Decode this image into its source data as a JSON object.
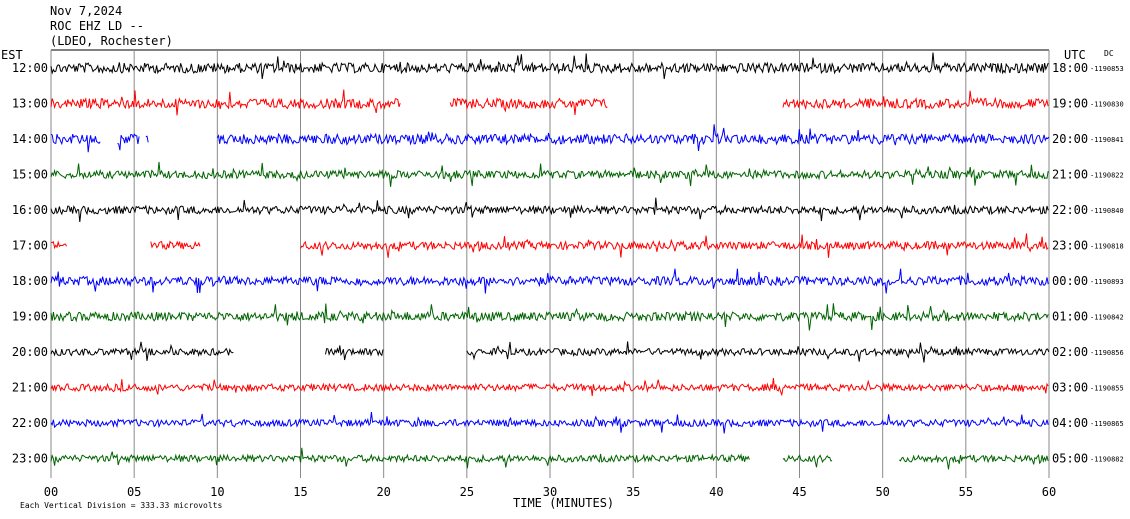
{
  "header": {
    "date": "Nov 7,2024",
    "station": "ROC EHZ LD --",
    "network": "(LDEO, Rochester)"
  },
  "left_axis_label": "EST",
  "right_axis_label": "UTC",
  "dc_label": "DC",
  "x_axis_label": "TIME (MINUTES)",
  "footer_note": "Each Vertical Division = 333.33 microvolts",
  "chart_data": {
    "type": "line",
    "title": "",
    "xlabel": "TIME (MINUTES)",
    "xlim": [
      0,
      60
    ],
    "x_ticks": [
      0,
      5,
      10,
      15,
      20,
      25,
      30,
      35,
      40,
      45,
      50,
      55,
      60
    ],
    "x_tick_labels": [
      "00",
      "05",
      "10",
      "15",
      "20",
      "25",
      "30",
      "35",
      "40",
      "45",
      "50",
      "55",
      "60"
    ],
    "grid": true,
    "colors": [
      "#000000",
      "#ff0000",
      "#0000ff",
      "#006400"
    ],
    "rows": [
      {
        "est": "12:00",
        "utc": "18:00",
        "dc": "-1190853",
        "color": "#000000",
        "segments": [
          [
            0,
            60
          ]
        ],
        "amplitude": 0.5
      },
      {
        "est": "13:00",
        "utc": "19:00",
        "dc": "-1190830",
        "color": "#ff0000",
        "segments": [
          [
            0,
            21
          ],
          [
            24,
            33.5
          ],
          [
            44,
            60
          ]
        ],
        "amplitude": 0.5
      },
      {
        "est": "14:00",
        "utc": "20:00",
        "dc": "-1190841",
        "color": "#0000ff",
        "segments": [
          [
            0,
            3
          ],
          [
            4,
            5.3
          ],
          [
            5.7,
            5.9
          ],
          [
            10,
            60
          ]
        ],
        "amplitude": 0.5
      },
      {
        "est": "15:00",
        "utc": "21:00",
        "dc": "-1190822",
        "color": "#006400",
        "segments": [
          [
            0,
            60
          ]
        ],
        "amplitude": 0.4
      },
      {
        "est": "16:00",
        "utc": "22:00",
        "dc": "-1190840",
        "color": "#000000",
        "segments": [
          [
            0,
            60
          ]
        ],
        "amplitude": 0.4
      },
      {
        "est": "17:00",
        "utc": "23:00",
        "dc": "-1190818",
        "color": "#ff0000",
        "segments": [
          [
            0,
            1
          ],
          [
            6,
            9
          ],
          [
            15,
            60
          ]
        ],
        "amplitude": 0.4
      },
      {
        "est": "18:00",
        "utc": "00:00",
        "dc": "-1190893",
        "color": "#0000ff",
        "segments": [
          [
            0,
            60
          ]
        ],
        "amplitude": 0.45
      },
      {
        "est": "19:00",
        "utc": "01:00",
        "dc": "-1190842",
        "color": "#006400",
        "segments": [
          [
            0,
            60
          ]
        ],
        "amplitude": 0.45
      },
      {
        "est": "20:00",
        "utc": "02:00",
        "dc": "-1190856",
        "color": "#000000",
        "segments": [
          [
            0,
            11
          ],
          [
            16.5,
            20
          ],
          [
            25,
            60
          ]
        ],
        "amplitude": 0.35
      },
      {
        "est": "21:00",
        "utc": "03:00",
        "dc": "-1190855",
        "color": "#ff0000",
        "segments": [
          [
            0,
            60
          ]
        ],
        "amplitude": 0.35
      },
      {
        "est": "22:00",
        "utc": "04:00",
        "dc": "-1190865",
        "color": "#0000ff",
        "segments": [
          [
            0,
            60
          ]
        ],
        "amplitude": 0.35
      },
      {
        "est": "23:00",
        "utc": "05:00",
        "dc": "-1190882",
        "color": "#006400",
        "segments": [
          [
            0,
            42
          ],
          [
            44,
            47
          ],
          [
            51,
            60
          ]
        ],
        "amplitude": 0.35
      }
    ]
  }
}
